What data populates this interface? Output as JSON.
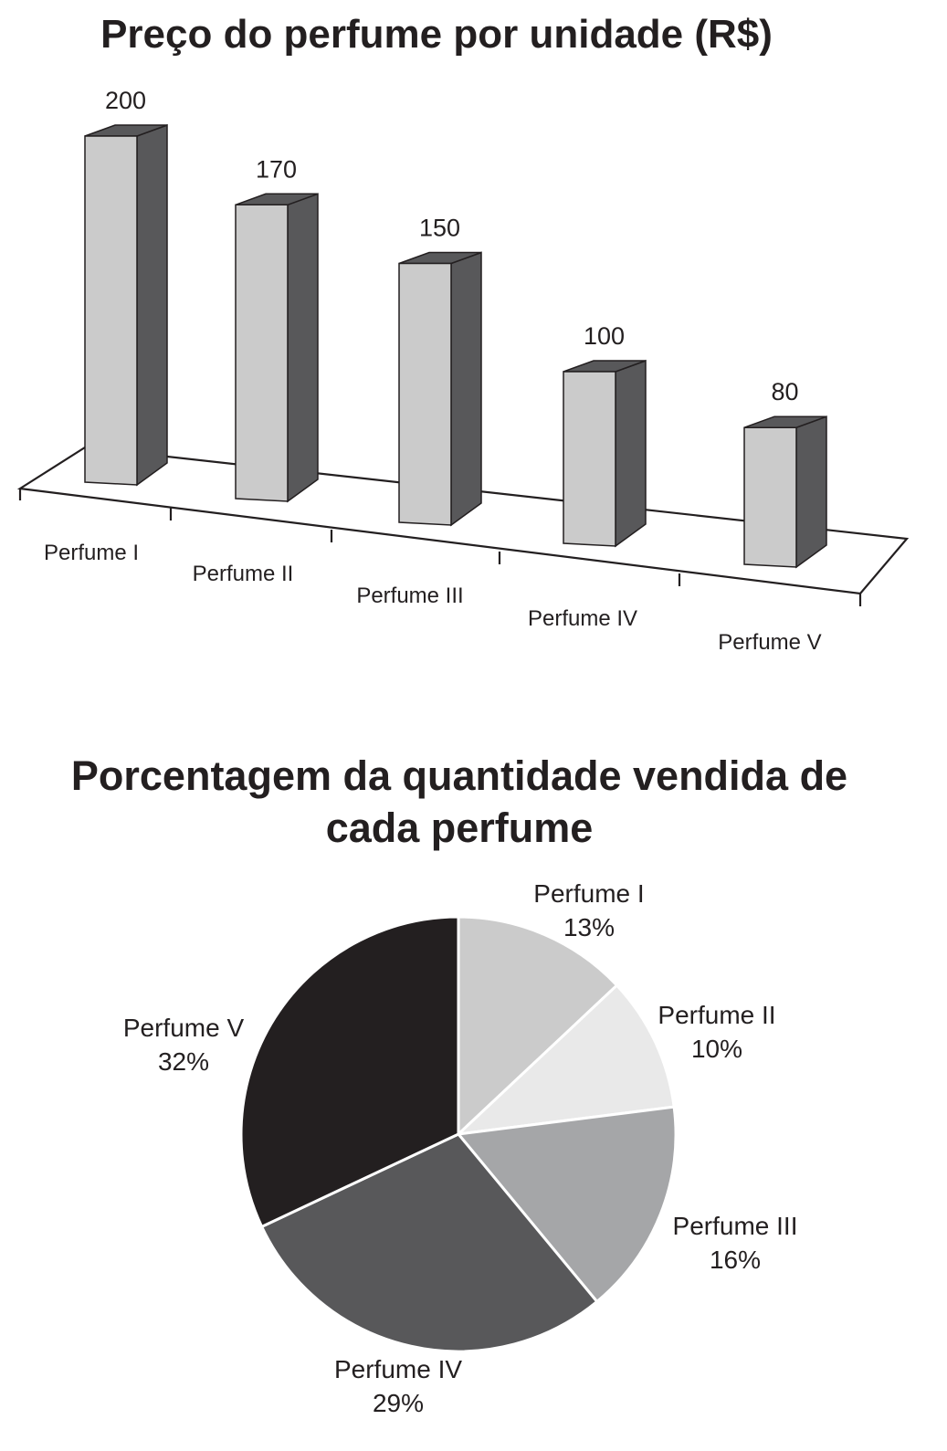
{
  "chart_data": [
    {
      "type": "bar",
      "title": "Preço do perfume por unidade (R$)",
      "categories": [
        "Perfume I",
        "Perfume II",
        "Perfume III",
        "Perfume IV",
        "Perfume V"
      ],
      "values": [
        200,
        170,
        150,
        100,
        80
      ],
      "data_labels": [
        "200",
        "170",
        "150",
        "100",
        "80"
      ],
      "style": "3d",
      "colors": {
        "bar_front": "#cbcbcb",
        "bar_side": "#58585a",
        "bar_top": "#58585a",
        "outline": "#231f20"
      }
    },
    {
      "type": "pie",
      "title_lines": [
        "Porcentagem da quantidade vendida de",
        "cada perfume"
      ],
      "slices": [
        {
          "name": "Perfume I",
          "value": 13,
          "label": "13%",
          "color": "#cbcbcb"
        },
        {
          "name": "Perfume II",
          "value": 10,
          "label": "10%",
          "color": "#e9e9e9"
        },
        {
          "name": "Perfume III",
          "value": 16,
          "label": "16%",
          "color": "#a5a6a8"
        },
        {
          "name": "Perfume IV",
          "value": 29,
          "label": "29%",
          "color": "#58585a"
        },
        {
          "name": "Perfume V",
          "value": 32,
          "label": "32%",
          "color": "#231f20"
        }
      ]
    }
  ]
}
